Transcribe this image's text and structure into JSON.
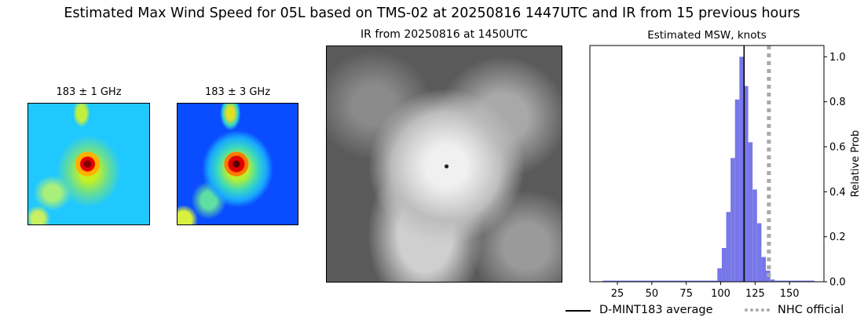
{
  "figure": {
    "title": "Estimated Max Wind Speed for 05L based on TMS-02 at 20250816 1447UTC and IR from 15 previous hours"
  },
  "panels": {
    "mw1_title": "183 ± 1 GHz",
    "mw2_title": "183 ± 3 GHz",
    "ir_title": "IR from 20250816 at 1450UTC",
    "hist_title": "Estimated MSW, knots"
  },
  "legend": {
    "dmint_label": "D-MINT183 average",
    "nhc_label": "NHC official"
  },
  "colors": {
    "bar": "#7777ea",
    "dmint_line": "#000000",
    "nhc_line": "#aaaaaa"
  },
  "chart_data": {
    "type": "bar",
    "title": "Estimated MSW, knots",
    "xlabel": "",
    "ylabel": "Relative Prob",
    "xlim": [
      5,
      175
    ],
    "ylim": [
      0,
      1.05
    ],
    "x_ticks": [
      25,
      50,
      75,
      100,
      125,
      150
    ],
    "y_ticks": [
      0.0,
      0.2,
      0.4,
      0.6,
      0.8,
      1.0
    ],
    "y_tick_labels": [
      "0.0",
      "0.2",
      "0.4",
      "0.6",
      "0.8",
      "1.0"
    ],
    "y_axis_side": "right",
    "bin_width": 3.2,
    "bin_centers": [
      16,
      19.2,
      22.4,
      25.6,
      28.8,
      32,
      35.2,
      38.4,
      41.6,
      44.8,
      48,
      51.2,
      54.4,
      57.6,
      60.8,
      64,
      67.2,
      70.4,
      73.6,
      76.8,
      80,
      83.2,
      86.4,
      89.6,
      92.8,
      96,
      99.2,
      102.4,
      105.6,
      108.8,
      112,
      115.2,
      118.4,
      121.6,
      124.8,
      128,
      131.2,
      134.4,
      137.6,
      140.8,
      144,
      147.2,
      150.4,
      153.6,
      156.8,
      160,
      163.2,
      166.4
    ],
    "values": [
      0.005,
      0.005,
      0.005,
      0.005,
      0.005,
      0.005,
      0.005,
      0.005,
      0.005,
      0.005,
      0.005,
      0.005,
      0.005,
      0.005,
      0.005,
      0.005,
      0.005,
      0.005,
      0.005,
      0.005,
      0.005,
      0.005,
      0.005,
      0.005,
      0.005,
      0.005,
      0.06,
      0.15,
      0.31,
      0.55,
      0.81,
      1.0,
      0.87,
      0.62,
      0.41,
      0.26,
      0.11,
      0.05,
      0.01,
      0.005,
      0.005,
      0.005,
      0.005,
      0.005,
      0.005,
      0.005,
      0.005,
      0.005
    ],
    "series": [
      {
        "name": "D-MINT183 average",
        "type": "vline",
        "x": 117
      },
      {
        "name": "NHC official",
        "type": "vline",
        "x": 135,
        "style": "dotted"
      }
    ],
    "grid": false,
    "legend_placement": "below"
  }
}
